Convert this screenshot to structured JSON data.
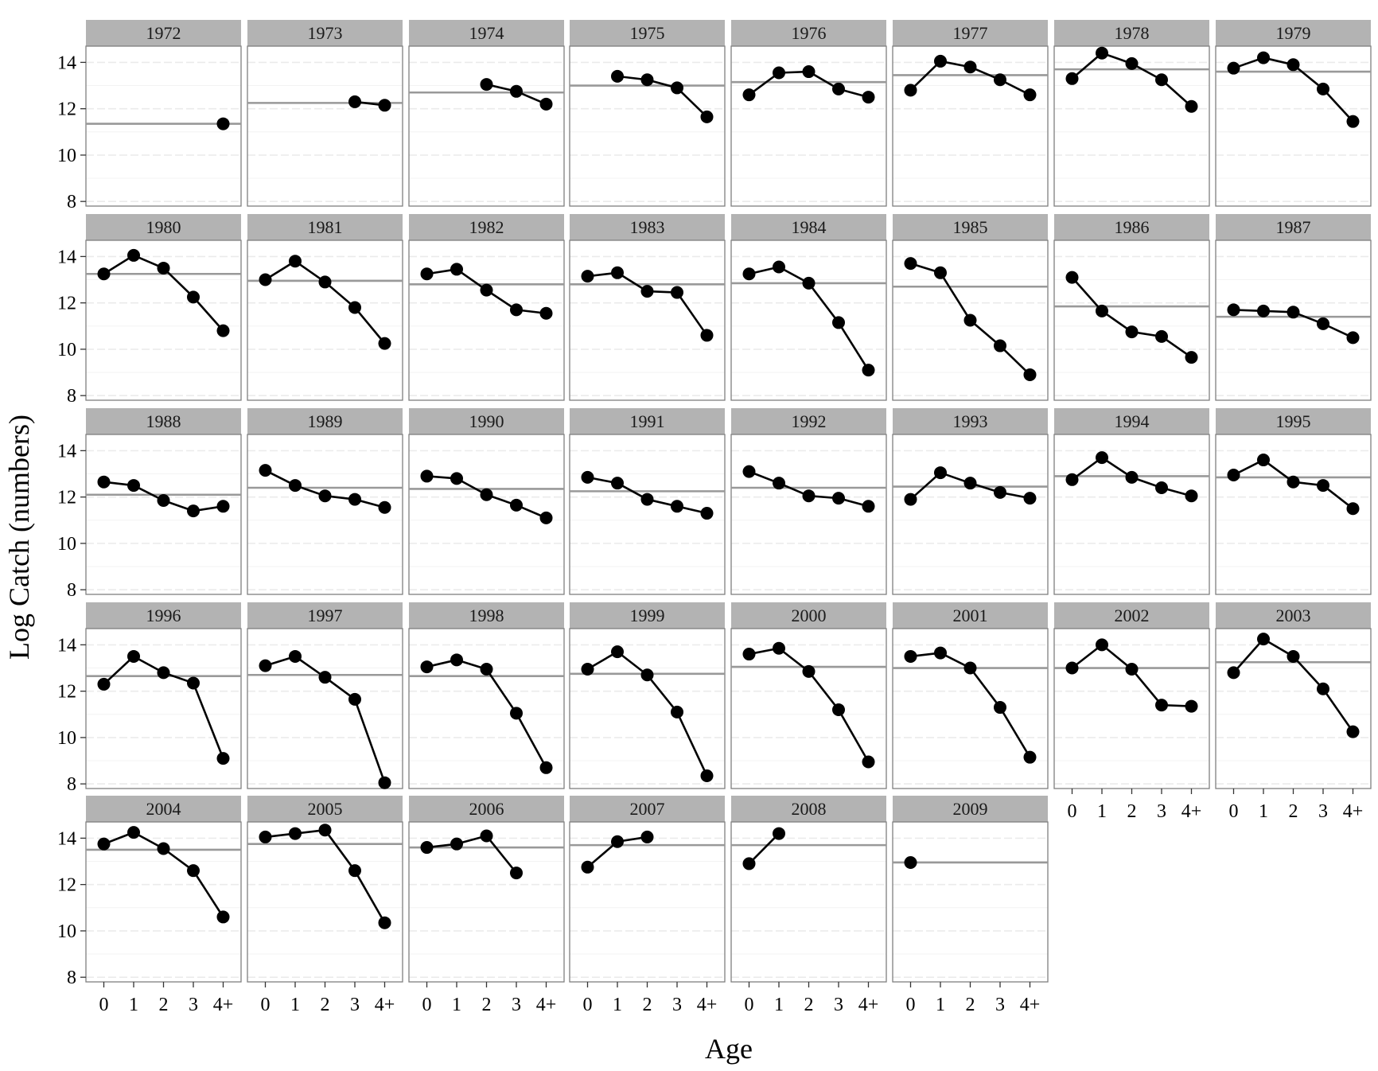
{
  "chart_data": {
    "type": "line",
    "facet_by": "cohort year",
    "xlabel": "Age",
    "ylabel": "Log Catch (numbers)",
    "x_categories": [
      "0",
      "1",
      "2",
      "3",
      "4+"
    ],
    "y_ticks": [
      8,
      10,
      12,
      14
    ],
    "ylim": [
      7.8,
      14.7
    ],
    "grid": true,
    "colors": {
      "strip": "#b3b3b3",
      "line": "#000000",
      "point": "#000000",
      "mean_line": "#999999",
      "grid": "#ebebeb"
    },
    "panels": [
      {
        "year": "1972",
        "values": [
          null,
          null,
          null,
          null,
          11.35
        ],
        "mean": 11.35
      },
      {
        "year": "1973",
        "values": [
          null,
          null,
          null,
          12.3,
          12.15
        ],
        "mean": 12.25
      },
      {
        "year": "1974",
        "values": [
          null,
          null,
          13.05,
          12.75,
          12.2
        ],
        "mean": 12.7
      },
      {
        "year": "1975",
        "values": [
          null,
          13.4,
          13.25,
          12.9,
          11.65
        ],
        "mean": 13.0
      },
      {
        "year": "1976",
        "values": [
          12.6,
          13.55,
          13.6,
          12.85,
          12.5
        ],
        "mean": 13.15
      },
      {
        "year": "1977",
        "values": [
          12.8,
          14.05,
          13.8,
          13.25,
          12.6
        ],
        "mean": 13.45
      },
      {
        "year": "1978",
        "values": [
          13.3,
          14.4,
          13.95,
          13.25,
          12.1
        ],
        "mean": 13.7
      },
      {
        "year": "1979",
        "values": [
          13.75,
          14.2,
          13.9,
          12.85,
          11.45
        ],
        "mean": 13.6
      },
      {
        "year": "1980",
        "values": [
          13.25,
          14.05,
          13.5,
          12.25,
          10.8
        ],
        "mean": 13.25
      },
      {
        "year": "1981",
        "values": [
          13.0,
          13.8,
          12.9,
          11.8,
          10.25
        ],
        "mean": 12.95
      },
      {
        "year": "1982",
        "values": [
          13.25,
          13.45,
          12.55,
          11.7,
          11.55
        ],
        "mean": 12.8
      },
      {
        "year": "1983",
        "values": [
          13.15,
          13.3,
          12.5,
          12.45,
          10.6
        ],
        "mean": 12.8
      },
      {
        "year": "1984",
        "values": [
          13.25,
          13.55,
          12.85,
          11.15,
          9.1
        ],
        "mean": 12.85
      },
      {
        "year": "1985",
        "values": [
          13.7,
          13.3,
          11.25,
          10.15,
          8.9
        ],
        "mean": 12.7
      },
      {
        "year": "1986",
        "values": [
          13.1,
          11.65,
          10.75,
          10.55,
          9.65
        ],
        "mean": 11.85
      },
      {
        "year": "1987",
        "values": [
          11.7,
          11.65,
          11.6,
          11.1,
          10.5
        ],
        "mean": 11.4
      },
      {
        "year": "1988",
        "values": [
          12.65,
          12.5,
          11.85,
          11.4,
          11.6
        ],
        "mean": 12.1
      },
      {
        "year": "1989",
        "values": [
          13.15,
          12.5,
          12.05,
          11.9,
          11.55
        ],
        "mean": 12.4
      },
      {
        "year": "1990",
        "values": [
          12.9,
          12.8,
          12.1,
          11.65,
          11.1
        ],
        "mean": 12.35
      },
      {
        "year": "1991",
        "values": [
          12.85,
          12.6,
          11.9,
          11.6,
          11.3
        ],
        "mean": 12.25
      },
      {
        "year": "1992",
        "values": [
          13.1,
          12.6,
          12.05,
          11.95,
          11.6
        ],
        "mean": 12.4
      },
      {
        "year": "1993",
        "values": [
          11.9,
          13.05,
          12.6,
          12.2,
          11.95
        ],
        "mean": 12.45
      },
      {
        "year": "1994",
        "values": [
          12.75,
          13.7,
          12.85,
          12.4,
          12.05
        ],
        "mean": 12.9
      },
      {
        "year": "1995",
        "values": [
          12.95,
          13.6,
          12.65,
          12.5,
          11.5
        ],
        "mean": 12.85
      },
      {
        "year": "1996",
        "values": [
          12.3,
          13.5,
          12.8,
          12.35,
          9.1
        ],
        "mean": 12.65
      },
      {
        "year": "1997",
        "values": [
          13.1,
          13.5,
          12.6,
          11.65,
          8.05
        ],
        "mean": 12.7
      },
      {
        "year": "1998",
        "values": [
          13.05,
          13.35,
          12.95,
          11.05,
          8.7
        ],
        "mean": 12.65
      },
      {
        "year": "1999",
        "values": [
          12.95,
          13.7,
          12.7,
          11.1,
          8.35
        ],
        "mean": 12.75
      },
      {
        "year": "2000",
        "values": [
          13.6,
          13.85,
          12.85,
          11.2,
          8.95
        ],
        "mean": 13.05
      },
      {
        "year": "2001",
        "values": [
          13.5,
          13.65,
          13.0,
          11.3,
          9.15
        ],
        "mean": 13.0
      },
      {
        "year": "2002",
        "values": [
          13.0,
          14.0,
          12.95,
          11.4,
          11.35
        ],
        "mean": 13.0
      },
      {
        "year": "2003",
        "values": [
          12.8,
          14.25,
          13.5,
          12.1,
          10.25
        ],
        "mean": 13.25
      },
      {
        "year": "2004",
        "values": [
          13.75,
          14.25,
          13.55,
          12.6,
          10.6
        ],
        "mean": 13.5
      },
      {
        "year": "2005",
        "values": [
          14.05,
          14.2,
          14.35,
          12.6,
          10.35
        ],
        "mean": 13.75
      },
      {
        "year": "2006",
        "values": [
          13.6,
          13.75,
          14.1,
          12.5,
          null
        ],
        "mean": 13.6
      },
      {
        "year": "2007",
        "values": [
          12.75,
          13.85,
          14.05,
          null,
          null
        ],
        "mean": 13.7
      },
      {
        "year": "2008",
        "values": [
          12.9,
          14.2,
          null,
          null,
          null
        ],
        "mean": 13.7
      },
      {
        "year": "2009",
        "values": [
          12.95,
          null,
          null,
          null,
          null
        ],
        "mean": 12.95
      }
    ]
  }
}
